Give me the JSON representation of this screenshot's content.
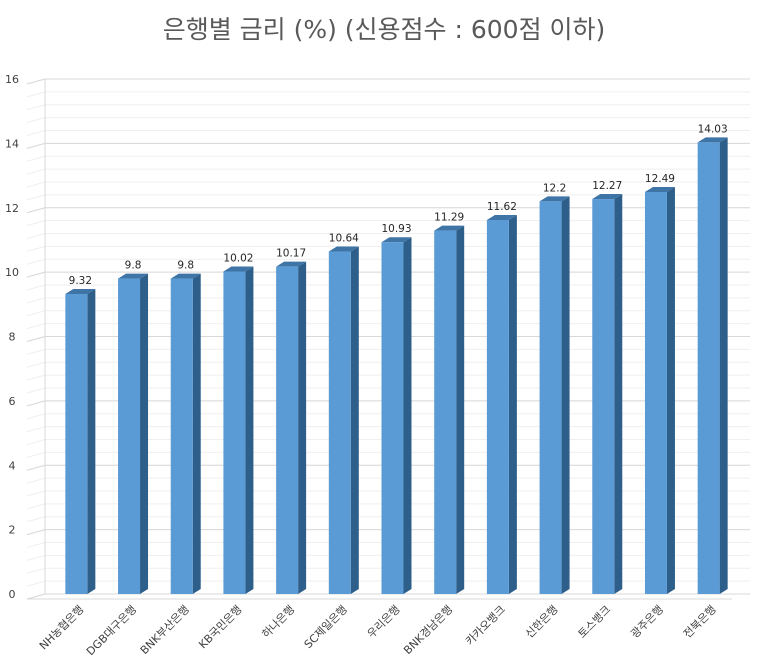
{
  "chart_data": {
    "type": "bar",
    "title": "은행별 금리 (%) (신용점수 : 600점 이하)",
    "xlabel": "",
    "ylabel": "",
    "categories": [
      "NH농협은행",
      "DGB대구은행",
      "BNK부산은행",
      "KB국민은행",
      "하나은행",
      "SC제일은행",
      "우리은행",
      "BNK경남은행",
      "카카오뱅크",
      "신한은행",
      "토스뱅크",
      "광주은행",
      "전북은행"
    ],
    "values": [
      9.32,
      9.8,
      9.8,
      10.02,
      10.17,
      10.64,
      10.93,
      11.29,
      11.62,
      12.2,
      12.27,
      12.49,
      14.03
    ],
    "value_labels": [
      "9.32",
      "9.8",
      "9.8",
      "10.02",
      "10.17",
      "10.64",
      "10.93",
      "11.29",
      "11.62",
      "12.2",
      "12.27",
      "12.49",
      "14.03"
    ],
    "ylim": [
      0,
      16
    ],
    "yticks": [
      "0",
      "2",
      "4",
      "6",
      "8",
      "10",
      "12",
      "14",
      "16"
    ],
    "grid": true,
    "legend": "none",
    "colors": {
      "bar_front": "#5b9bd5",
      "bar_side": "#2e5f8a",
      "bar_top": "#3e74a6",
      "grid_major": "#d9d9d9",
      "grid_minor": "#efefef",
      "axis_text": "#404040"
    }
  }
}
